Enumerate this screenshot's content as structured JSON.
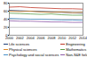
{
  "chart_data": {
    "type": "line",
    "x": [
      2000,
      2002,
      2004,
      2006,
      2008,
      2010,
      2012,
      2014
    ],
    "xlim": [
      2000,
      2014
    ],
    "xticks": [
      2000,
      2002,
      2004,
      2006,
      2008,
      2010,
      2012,
      2014
    ],
    "ylim": [
      0,
      80
    ],
    "yticks": [
      0,
      20,
      40,
      60,
      80
    ],
    "grid": true,
    "legend": "bottom",
    "series": [
      {
        "name": "Life sciences",
        "color": "#1f3f7a",
        "values": [
          62,
          61,
          60,
          59,
          58,
          57,
          56,
          55
        ]
      },
      {
        "name": "Engineering",
        "color": "#c0392b",
        "values": [
          70,
          71,
          69,
          68,
          67,
          66,
          66,
          65
        ]
      },
      {
        "name": "Physical sciences",
        "color": "#e08a2c",
        "values": [
          60,
          59,
          60,
          58,
          57,
          58,
          56,
          57
        ]
      },
      {
        "name": "Mathematics and computer sciences",
        "color": "#5a9e4b",
        "values": [
          55,
          54,
          53,
          52,
          53,
          51,
          50,
          50
        ]
      },
      {
        "name": "Psychology and social sciences",
        "color": "#4a90c8",
        "values": [
          42,
          41,
          40,
          40,
          39,
          38,
          38,
          37
        ]
      },
      {
        "name": "Non-S&E fields",
        "color": "#8e5aa8",
        "values": [
          36,
          35,
          35,
          34,
          33,
          33,
          32,
          32
        ]
      }
    ]
  }
}
